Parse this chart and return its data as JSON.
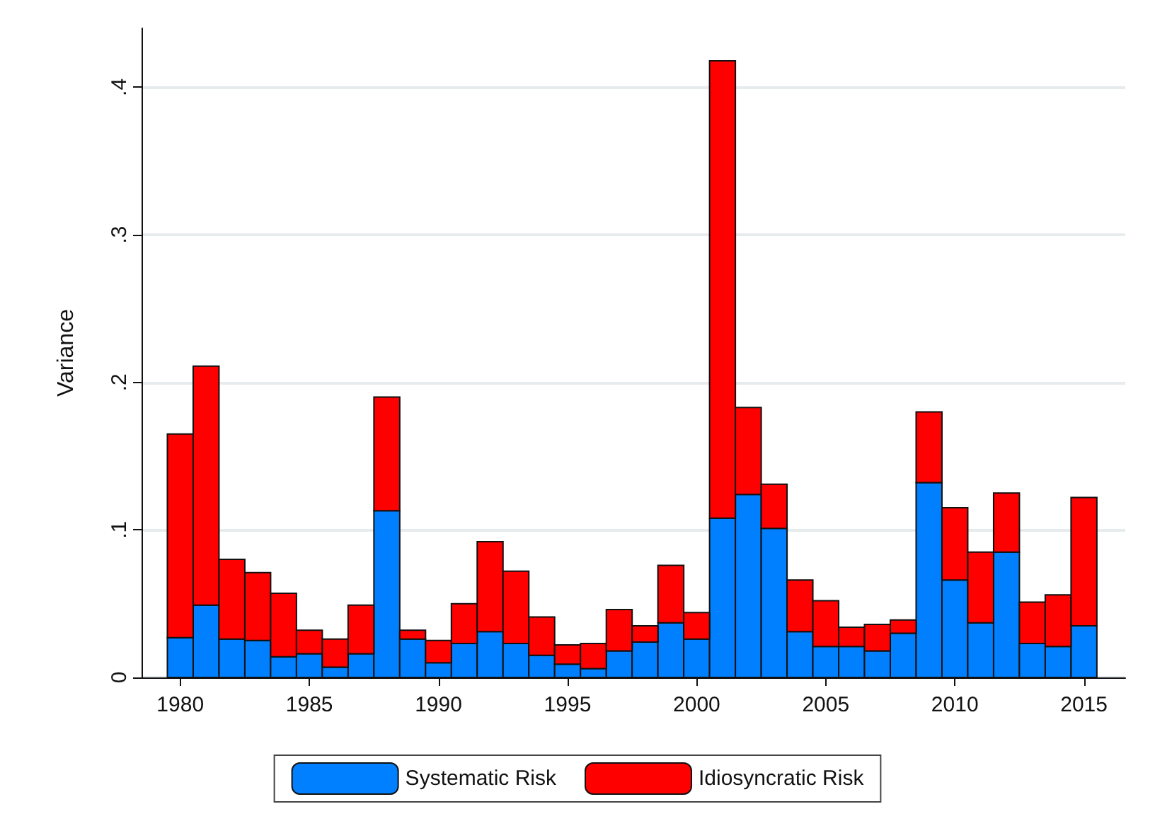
{
  "chart_data": {
    "type": "bar",
    "stacked": true,
    "ylabel": "Variance",
    "x": [
      1980,
      1981,
      1982,
      1983,
      1984,
      1985,
      1986,
      1987,
      1988,
      1989,
      1990,
      1991,
      1992,
      1993,
      1994,
      1995,
      1996,
      1997,
      1998,
      1999,
      2000,
      2001,
      2002,
      2003,
      2004,
      2005,
      2006,
      2007,
      2008,
      2009,
      2010,
      2011,
      2012,
      2013,
      2014,
      2015
    ],
    "series": [
      {
        "name": "Systematic Risk",
        "color": "#0080ff",
        "values": [
          0.027,
          0.049,
          0.026,
          0.025,
          0.014,
          0.016,
          0.007,
          0.016,
          0.113,
          0.026,
          0.01,
          0.023,
          0.031,
          0.023,
          0.015,
          0.009,
          0.006,
          0.018,
          0.024,
          0.037,
          0.026,
          0.108,
          0.124,
          0.101,
          0.031,
          0.021,
          0.021,
          0.018,
          0.03,
          0.132,
          0.066,
          0.037,
          0.085,
          0.023,
          0.021,
          0.035
        ]
      },
      {
        "name": "Idiosyncratic Risk",
        "color": "#ff0000",
        "values": [
          0.138,
          0.162,
          0.054,
          0.046,
          0.043,
          0.016,
          0.019,
          0.033,
          0.077,
          0.006,
          0.015,
          0.027,
          0.061,
          0.049,
          0.026,
          0.013,
          0.017,
          0.028,
          0.011,
          0.039,
          0.018,
          0.31,
          0.059,
          0.03,
          0.035,
          0.031,
          0.013,
          0.018,
          0.009,
          0.048,
          0.049,
          0.048,
          0.04,
          0.028,
          0.035,
          0.087
        ]
      }
    ],
    "xlim": [
      1978.5,
      2016.6
    ],
    "xticks": [
      1980,
      1985,
      1990,
      1995,
      2000,
      2005,
      2010,
      2015
    ],
    "ylim": [
      0,
      0.44
    ],
    "yticks": [
      0,
      {
        "value": 0.1,
        "label": ".1"
      },
      {
        "value": 0.2,
        "label": ".2"
      },
      {
        "value": 0.3,
        "label": ".3"
      },
      {
        "value": 0.4,
        "label": ".4"
      }
    ],
    "grid": "y",
    "legend": "bottom"
  }
}
